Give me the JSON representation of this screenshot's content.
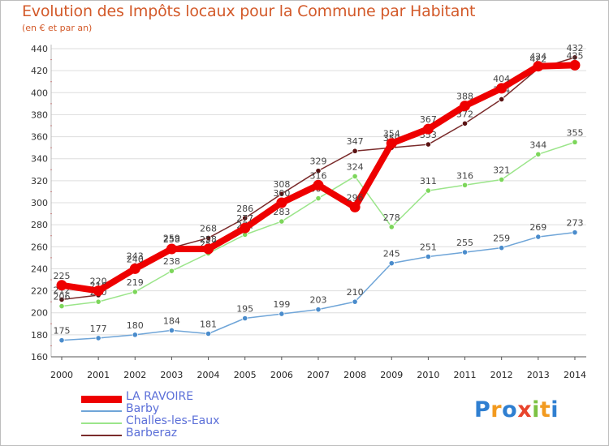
{
  "chart_data": {
    "type": "line",
    "title": "Evolution des Impôts locaux pour la Commune par Habitant",
    "subtitle": "(en € et par an)",
    "x": [
      2000,
      2001,
      2002,
      2003,
      2004,
      2005,
      2006,
      2007,
      2008,
      2009,
      2010,
      2011,
      2012,
      2013,
      2014
    ],
    "ylim": [
      160,
      440
    ],
    "yticks": [
      160,
      180,
      200,
      220,
      240,
      260,
      280,
      300,
      320,
      340,
      360,
      380,
      400,
      420,
      440
    ],
    "series": [
      {
        "name": "Barberaz",
        "color": "#7a2b2b",
        "marker": "#5a1212",
        "values": [
          212,
          216,
          243,
          259,
          268,
          286,
          308,
          329,
          347,
          350,
          353,
          372,
          394,
          422,
          432
        ]
      },
      {
        "name": "Challes-les-Eaux",
        "color": "#9be58a",
        "marker": "#7cd65a",
        "values": [
          206,
          210,
          219,
          238,
          254,
          271,
          283,
          304,
          324,
          278,
          311,
          316,
          321,
          344,
          355
        ]
      },
      {
        "name": "Barby",
        "color": "#6fa5d8",
        "marker": "#4a8ccc",
        "values": [
          175,
          177,
          180,
          184,
          181,
          195,
          199,
          203,
          210,
          245,
          251,
          255,
          259,
          269,
          273
        ]
      },
      {
        "name": "LA RAVOIRE",
        "color": "#ee0000",
        "marker": "#ee0000",
        "values": [
          225,
          220,
          240,
          258,
          258,
          277,
          300,
          316,
          296,
          354,
          367,
          388,
          404,
          424,
          425
        ]
      }
    ]
  },
  "legend": {
    "items": [
      {
        "label": "LA RAVOIRE",
        "color": "#ee0000"
      },
      {
        "label": "Barby",
        "color": "#6fa5d8"
      },
      {
        "label": "Challes-les-Eaux",
        "color": "#9be58a"
      },
      {
        "label": "Barberaz",
        "color": "#7a2b2b"
      }
    ]
  },
  "logo": {
    "text": "Proxiti"
  }
}
